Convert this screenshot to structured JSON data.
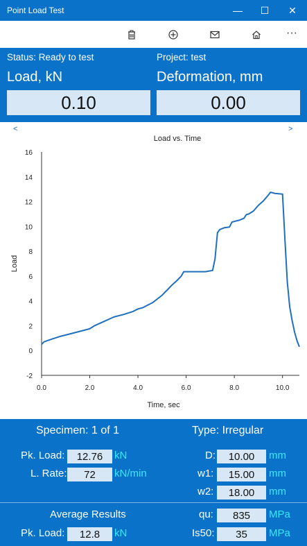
{
  "window": {
    "title": "Point Load Test",
    "minimize": "—",
    "maximize": "☐",
    "close": "✕"
  },
  "toolbar": {
    "icons": [
      "trash-icon",
      "add-circle-icon",
      "mail-icon",
      "home-icon",
      "more-icon"
    ],
    "more_label": "···"
  },
  "status": {
    "status_text": "Status: Ready to test",
    "project_text": "Project: test",
    "load_label": "Load, kN",
    "deformation_label": "Deformation, mm",
    "load_value": "0.10",
    "deformation_value": "0.00"
  },
  "chart_nav": {
    "prev": "<",
    "next": ">"
  },
  "chart_data": {
    "type": "line",
    "title": "Load vs. Time",
    "xlabel": "Time, sec",
    "ylabel": "Load",
    "xlim": [
      0,
      10.7
    ],
    "ylim": [
      -2,
      16
    ],
    "xticks": [
      "0.0",
      "2.0",
      "4.0",
      "6.0",
      "8.0",
      "10.0"
    ],
    "yticks": [
      "-2",
      "0",
      "2",
      "4",
      "6",
      "8",
      "10",
      "12",
      "14",
      "16"
    ],
    "grid": false,
    "color": "#1f6fbf",
    "series": [
      {
        "x": [
          0,
          0.1,
          0.4,
          0.8,
          1.2,
          1.6,
          2.0,
          2.2,
          2.6,
          3.0,
          3.4,
          3.8,
          4.0,
          4.2,
          4.4,
          4.6,
          4.8,
          5.0,
          5.2,
          5.4,
          5.6,
          5.8,
          5.9,
          6.0,
          6.4,
          6.8,
          7.1,
          7.2,
          7.3,
          7.4,
          7.6,
          7.8,
          7.9,
          8.0,
          8.2,
          8.4,
          8.5,
          8.6,
          8.8,
          9.0,
          9.2,
          9.4,
          9.5,
          9.7,
          10.0,
          10.1,
          10.2,
          10.3,
          10.4,
          10.5,
          10.6,
          10.7
        ],
        "y": [
          0.5,
          0.7,
          0.9,
          1.15,
          1.35,
          1.55,
          1.75,
          2.0,
          2.35,
          2.7,
          2.9,
          3.15,
          3.35,
          3.45,
          3.65,
          3.85,
          4.15,
          4.45,
          4.85,
          5.25,
          5.6,
          6.0,
          6.35,
          6.35,
          6.35,
          6.35,
          6.45,
          7.4,
          9.5,
          9.75,
          9.9,
          9.95,
          10.35,
          10.4,
          10.5,
          10.65,
          10.95,
          11.0,
          11.25,
          11.7,
          12.05,
          12.5,
          12.75,
          12.65,
          12.6,
          9.0,
          5.5,
          3.5,
          2.4,
          1.5,
          0.8,
          0.3
        ]
      }
    ]
  },
  "specimen": {
    "specimen_text": "Specimen:  1 of 1",
    "type_text": "Type: Irregular",
    "pk_load_label": "Pk. Load:",
    "pk_load_value": "12.76",
    "pk_load_unit": "kN",
    "l_rate_label": "L. Rate:",
    "l_rate_value": "72",
    "l_rate_unit": "kN/min",
    "d_label": "D:",
    "d_value": "10.00",
    "d_unit": "mm",
    "w1_label": "w1:",
    "w1_value": "15.00",
    "w1_unit": "mm",
    "w2_label": "w2:",
    "w2_value": "18.00",
    "w2_unit": "mm"
  },
  "average": {
    "heading": "Average Results",
    "pk_load_label": "Pk. Load:",
    "pk_load_value": "12.8",
    "pk_load_unit": "kN",
    "qu_label": "qu:",
    "qu_value": "835",
    "qu_unit": "MPa",
    "is50_label": "Is50:",
    "is50_value": "35",
    "is50_unit": "MPa"
  }
}
